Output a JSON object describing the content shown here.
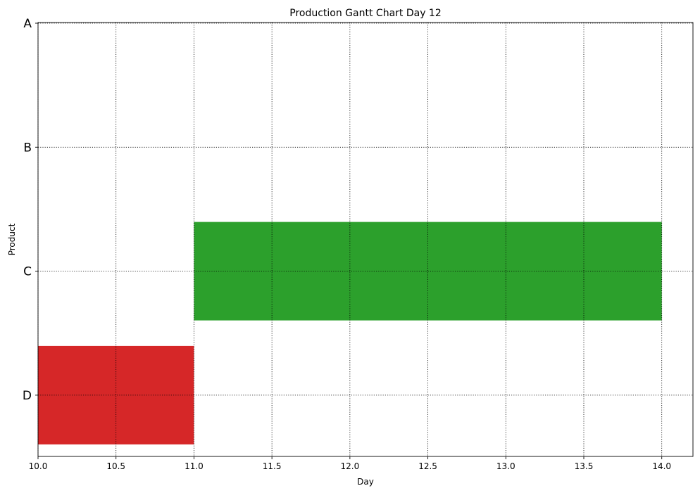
{
  "chart_data": {
    "type": "bar",
    "orientation": "horizontal-gantt",
    "title": "Production Gantt Chart Day 12",
    "xlabel": "Day",
    "ylabel": "Product",
    "categories": [
      "A",
      "B",
      "C",
      "D"
    ],
    "xlim": [
      10.0,
      14.2
    ],
    "xticks": [
      "10.0",
      "10.5",
      "11.0",
      "11.5",
      "12.0",
      "12.5",
      "13.0",
      "13.5",
      "14.0"
    ],
    "grid": true,
    "tasks": [
      {
        "product": "C",
        "start": 11.0,
        "end": 14.0,
        "color": "#2ca02c"
      },
      {
        "product": "D",
        "start": 10.0,
        "end": 11.0,
        "color": "#d62728"
      }
    ]
  }
}
